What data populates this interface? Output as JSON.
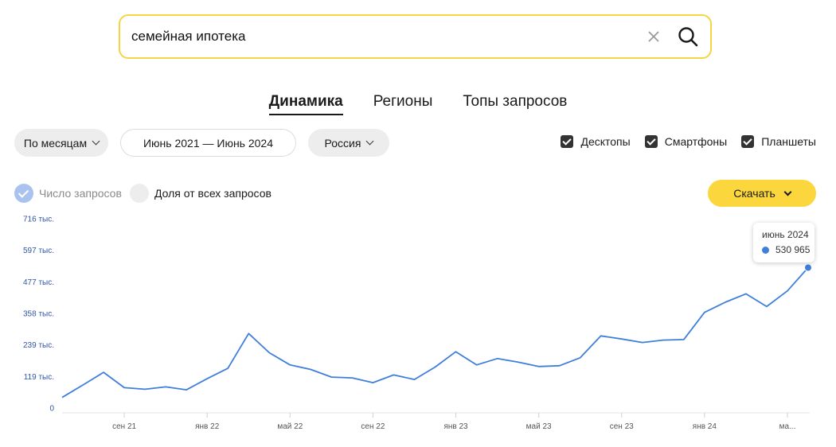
{
  "search": {
    "query": "семейная ипотека"
  },
  "tabs": [
    {
      "label": "Динамика",
      "active": true
    },
    {
      "label": "Регионы",
      "active": false
    },
    {
      "label": "Топы запросов",
      "active": false
    }
  ],
  "filters": {
    "period": "По месяцам",
    "date_range": "Июнь 2021 — Июнь 2024",
    "region": "Россия"
  },
  "devices": [
    {
      "label": "Десктопы",
      "checked": true
    },
    {
      "label": "Смартфоны",
      "checked": true
    },
    {
      "label": "Планшеты",
      "checked": true
    }
  ],
  "metrics": {
    "count_label": "Число запросов",
    "share_label": "Доля от всех запросов"
  },
  "download": {
    "label": "Скачать"
  },
  "tooltip": {
    "month": "июнь 2024",
    "value": "530 965"
  },
  "colors": {
    "line": "#3f7fdc",
    "accent": "#fcd63d"
  },
  "chart_data": {
    "type": "line",
    "y_tick_labels": [
      "0",
      "119 тыс.",
      "239 тыс.",
      "358 тыс.",
      "477 тыс.",
      "597 тыс.",
      "716 тыс."
    ],
    "y_tick_values": [
      0,
      119000,
      239000,
      358000,
      477000,
      597000,
      716000
    ],
    "ylim": [
      0,
      716000
    ],
    "x_tick_labels": [
      "сен 21",
      "янв 22",
      "май 22",
      "сен 22",
      "янв 23",
      "май 23",
      "сен 23",
      "янв 24",
      "ма..."
    ],
    "x_tick_months": [
      "2021-09",
      "2022-01",
      "2022-05",
      "2022-09",
      "2023-01",
      "2023-05",
      "2023-09",
      "2024-01",
      "2024-05"
    ],
    "grid": false,
    "series": [
      {
        "x": [
          "2021-06",
          "2021-07",
          "2021-08",
          "2021-09",
          "2021-10",
          "2021-11",
          "2021-12",
          "2022-01",
          "2022-02",
          "2022-03",
          "2022-04",
          "2022-05",
          "2022-06",
          "2022-07",
          "2022-08",
          "2022-09",
          "2022-10",
          "2022-11",
          "2022-12",
          "2023-01",
          "2023-02",
          "2023-03",
          "2023-04",
          "2023-05",
          "2023-06",
          "2023-07",
          "2023-08",
          "2023-09",
          "2023-10",
          "2023-11",
          "2023-12",
          "2024-01",
          "2024-02",
          "2024-03",
          "2024-04",
          "2024-05",
          "2024-06"
        ],
        "values": [
          40000,
          87000,
          135000,
          77000,
          71000,
          80000,
          69000,
          111000,
          150000,
          282000,
          209000,
          163000,
          146000,
          117000,
          114000,
          96000,
          125000,
          108000,
          155000,
          213000,
          163000,
          187000,
          174000,
          157000,
          160000,
          190000,
          273000,
          261000,
          248000,
          257000,
          259000,
          362000,
          400000,
          432000,
          384000,
          443000,
          530965
        ]
      }
    ]
  }
}
